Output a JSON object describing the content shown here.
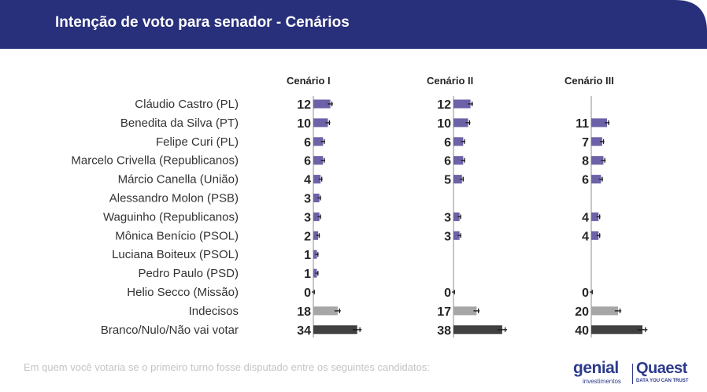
{
  "header": {
    "title": "Intenção de voto para senador - Cenários",
    "background_color": "#28307b"
  },
  "footnote": "Em quem você votaria se o primeiro turno fosse disputado entre os seguintes candidatos:",
  "logos": {
    "genial_name": "genial",
    "genial_sub": "investimentos",
    "quaest_name": "Quaest",
    "quaest_tagline": "DATA YOU CAN TRUST"
  },
  "chart_data": {
    "type": "bar",
    "orientation": "horizontal",
    "categories": [
      "Cláudio Castro (PL)",
      "Benedita da Silva (PT)",
      "Felipe Curi (PL)",
      "Marcelo Crivella (Republicanos)",
      "Márcio Canella (União)",
      "Alessandro Molon (PSB)",
      "Waguinho (Republicanos)",
      "Mônica Benício (PSOL)",
      "Luciana Boiteux (PSOL)",
      "Pedro Paulo (PSD)",
      "Helio Secco (Missão)",
      "Indecisos",
      "Branco/Nulo/Não vai votar"
    ],
    "series": [
      {
        "name": "Cenário I",
        "values": [
          12,
          10,
          6,
          6,
          4,
          3,
          3,
          2,
          1,
          1,
          0,
          18,
          34
        ]
      },
      {
        "name": "Cenário II",
        "values": [
          12,
          10,
          6,
          6,
          5,
          null,
          3,
          3,
          null,
          null,
          0,
          17,
          38
        ]
      },
      {
        "name": "Cenário III",
        "values": [
          null,
          11,
          7,
          8,
          6,
          null,
          4,
          4,
          null,
          null,
          0,
          20,
          40
        ]
      }
    ],
    "error_bars": true,
    "colors": {
      "candidate": "#6b62a8",
      "undecided": "#a6a6a6",
      "blank_null": "#404040",
      "error_bar": "#1a1a1a",
      "value_text": "#262626",
      "label_text": "#333333",
      "axis": "#b3b3b3"
    },
    "title": "",
    "xlabel": "",
    "ylabel": "",
    "grid": false,
    "legend": "none"
  }
}
